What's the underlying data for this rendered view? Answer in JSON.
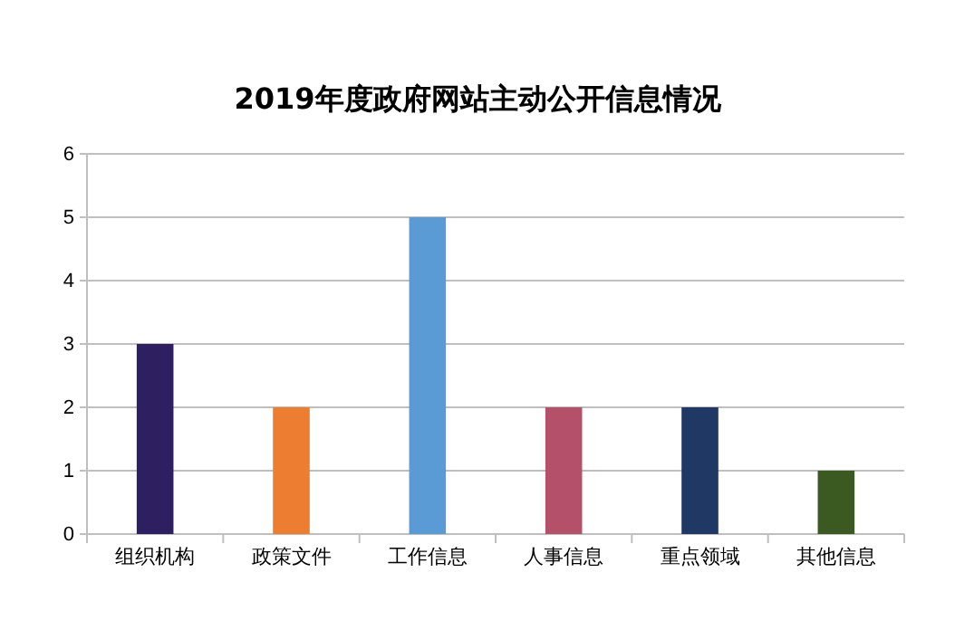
{
  "chart_data": {
    "type": "bar",
    "title": "2019年度政府网站主动公开信息情况",
    "categories": [
      "组织机构",
      "政策文件",
      "工作信息",
      "人事信息",
      "重点领域",
      "其他信息"
    ],
    "values": [
      3,
      2,
      5,
      2,
      2,
      1
    ],
    "colors": [
      "#2e2060",
      "#ed7d31",
      "#5b9bd5",
      "#b5506a",
      "#1f3864",
      "#3a5a22"
    ],
    "ylim": [
      0,
      6
    ],
    "yticks": [
      0,
      1,
      2,
      3,
      4,
      5,
      6
    ],
    "grid": "y"
  }
}
